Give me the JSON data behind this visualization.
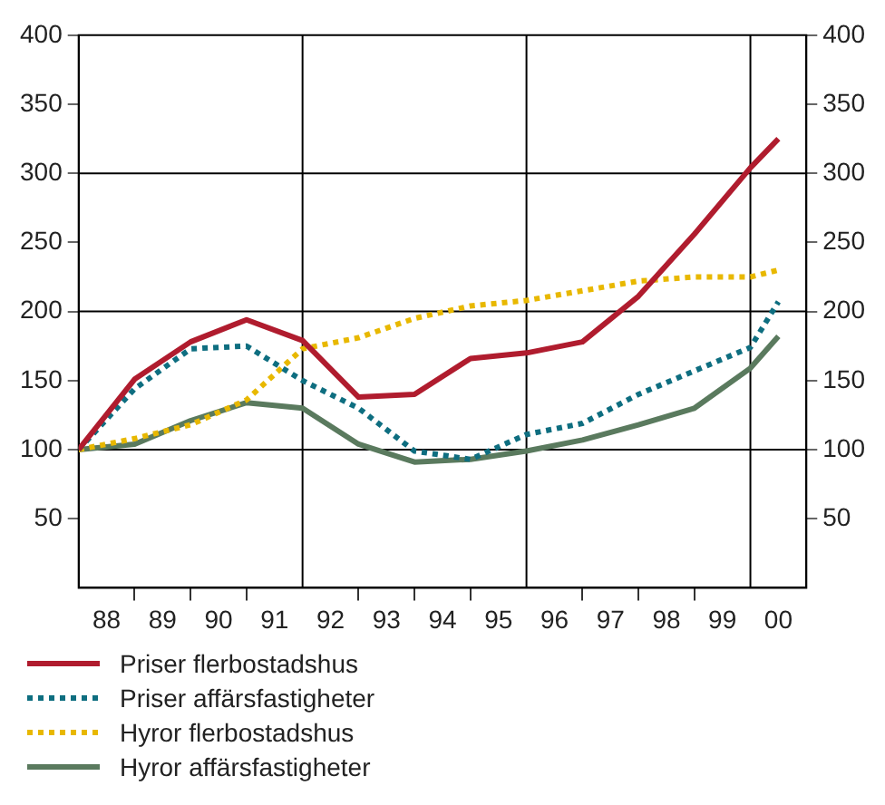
{
  "chart_data": {
    "type": "line",
    "x": [
      "1988-01",
      "1989-01",
      "1990-01",
      "1991-01",
      "1992-01",
      "1993-01",
      "1994-01",
      "1995-01",
      "1996-01",
      "1997-01",
      "1998-01",
      "1999-01",
      "2000-01",
      "2000-07"
    ],
    "series": [
      {
        "name": "Priser flerbostadshus",
        "color": "#b01c2e",
        "line_style": "solid",
        "values": [
          100,
          151,
          178,
          194,
          179,
          138,
          140,
          166,
          170,
          178,
          211,
          256,
          304,
          325
        ]
      },
      {
        "name": "Priser affärsfastigheter",
        "color": "#0e6e80",
        "line_style": "dotted",
        "values": [
          100,
          144,
          173,
          175,
          150,
          130,
          99,
          93,
          111,
          119,
          140,
          157,
          174,
          207
        ]
      },
      {
        "name": "Hyror flerbostadshus",
        "color": "#e8b800",
        "line_style": "dotted",
        "values": [
          100,
          108,
          118,
          136,
          173,
          181,
          195,
          204,
          208,
          215,
          222,
          225,
          225,
          230
        ]
      },
      {
        "name": "Hyror affärsfastigheter",
        "color": "#5a7a5e",
        "line_style": "solid",
        "values": [
          100,
          104,
          121,
          134,
          130,
          104,
          91,
          93,
          99,
          107,
          118,
          130,
          159,
          182
        ]
      }
    ],
    "xlim": [
      "1988-01",
      "2001-01"
    ],
    "xticks": [
      {
        "value": "1988-07",
        "label": "88"
      },
      {
        "value": "1989-07",
        "label": "89"
      },
      {
        "value": "1990-07",
        "label": "90"
      },
      {
        "value": "1991-07",
        "label": "91"
      },
      {
        "value": "1992-07",
        "label": "92"
      },
      {
        "value": "1993-07",
        "label": "93"
      },
      {
        "value": "1994-07",
        "label": "94"
      },
      {
        "value": "1995-07",
        "label": "95"
      },
      {
        "value": "1996-07",
        "label": "96"
      },
      {
        "value": "1997-07",
        "label": "97"
      },
      {
        "value": "1998-07",
        "label": "98"
      },
      {
        "value": "1999-07",
        "label": "99"
      },
      {
        "value": "2000-07",
        "label": "00"
      },
      {
        "value": "1989-01",
        "label": null
      },
      {
        "value": "1990-01",
        "label": null
      },
      {
        "value": "1991-01",
        "label": null
      },
      {
        "value": "1993-01",
        "label": null
      },
      {
        "value": "1994-01",
        "label": null
      },
      {
        "value": "1995-01",
        "label": null
      },
      {
        "value": "1997-01",
        "label": null
      },
      {
        "value": "1998-01",
        "label": null
      },
      {
        "value": "1999-01",
        "label": null
      }
    ],
    "ylim": [
      0,
      400
    ],
    "yticks": [
      50,
      100,
      150,
      200,
      250,
      300,
      350,
      400
    ],
    "y2lim": [
      0,
      400
    ],
    "y2ticks": [
      50,
      100,
      150,
      200,
      250,
      300,
      350,
      400
    ],
    "ref_lines": [
      {
        "axis": "x",
        "value": "1992-01",
        "color": "#000000"
      },
      {
        "axis": "x",
        "value": "1996-01",
        "color": "#000000"
      },
      {
        "axis": "x",
        "value": "2000-01",
        "color": "#000000"
      },
      {
        "axis": "y",
        "value": 100,
        "color": "#000000"
      },
      {
        "axis": "y",
        "value": 200,
        "color": "#000000"
      },
      {
        "axis": "y",
        "value": 300,
        "color": "#000000"
      }
    ],
    "grid": false,
    "legend": "bottom",
    "marker": "none"
  }
}
